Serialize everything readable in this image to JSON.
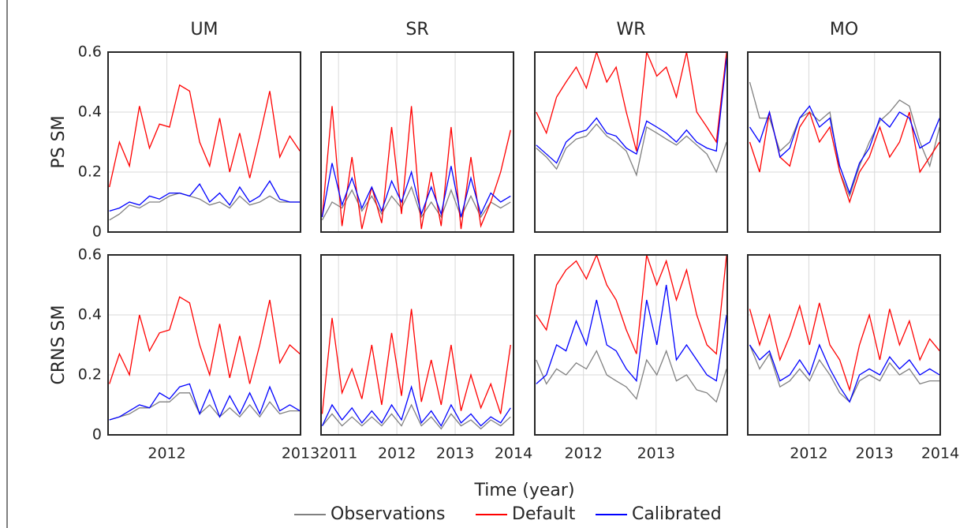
{
  "xlabel": "Time (year)",
  "legend": [
    {
      "name": "Observations",
      "color": "#808080"
    },
    {
      "name": "Default",
      "color": "#ff0000"
    },
    {
      "name": "Calibrated",
      "color": "#0000ff"
    }
  ],
  "chart_data": [
    {
      "type": "line",
      "title": "UM",
      "ylabel": "PS SM",
      "xlim": [
        2011.56,
        2013
      ],
      "xticks": [
        2012,
        2013
      ],
      "ylim": [
        0,
        0.6
      ],
      "yticks": [
        0,
        0.2,
        0.4,
        0.6
      ],
      "grid": true,
      "x": [
        2011.57,
        2011.645,
        2011.72,
        2011.795,
        2011.87,
        2011.945,
        2012.02,
        2012.095,
        2012.17,
        2012.245,
        2012.32,
        2012.395,
        2012.47,
        2012.545,
        2012.62,
        2012.695,
        2012.77,
        2012.845,
        2012.92,
        2012.995
      ],
      "series": [
        {
          "color": "#808080",
          "values": [
            0.04,
            0.06,
            0.09,
            0.08,
            0.1,
            0.1,
            0.12,
            0.13,
            0.12,
            0.11,
            0.09,
            0.1,
            0.08,
            0.12,
            0.09,
            0.1,
            0.12,
            0.1,
            0.1,
            0.1
          ]
        },
        {
          "color": "#ff0000",
          "values": [
            0.15,
            0.3,
            0.22,
            0.42,
            0.28,
            0.36,
            0.35,
            0.49,
            0.47,
            0.3,
            0.22,
            0.38,
            0.2,
            0.33,
            0.18,
            0.32,
            0.47,
            0.25,
            0.32,
            0.27
          ]
        },
        {
          "color": "#0000ff",
          "values": [
            0.07,
            0.08,
            0.1,
            0.09,
            0.12,
            0.11,
            0.13,
            0.13,
            0.12,
            0.16,
            0.1,
            0.13,
            0.09,
            0.15,
            0.1,
            0.12,
            0.17,
            0.11,
            0.1,
            0.1
          ]
        }
      ]
    },
    {
      "type": "line",
      "title": "SR",
      "xlim": [
        2010.7,
        2014
      ],
      "xticks": [
        2011,
        2012,
        2013,
        2014
      ],
      "ylim": [
        0,
        0.6
      ],
      "yticks": [
        0,
        0.2,
        0.4,
        0.6
      ],
      "grid": true,
      "x": [
        2010.72,
        2010.89,
        2011.06,
        2011.23,
        2011.4,
        2011.57,
        2011.74,
        2011.91,
        2012.08,
        2012.25,
        2012.42,
        2012.59,
        2012.76,
        2012.93,
        2013.1,
        2013.27,
        2013.44,
        2013.61,
        2013.78,
        2013.95
      ],
      "series": [
        {
          "color": "#808080",
          "values": [
            0.04,
            0.1,
            0.08,
            0.14,
            0.07,
            0.12,
            0.06,
            0.12,
            0.08,
            0.15,
            0.05,
            0.1,
            0.05,
            0.14,
            0.05,
            0.12,
            0.05,
            0.1,
            0.08,
            0.1
          ]
        },
        {
          "color": "#ff0000",
          "values": [
            0.05,
            0.42,
            0.02,
            0.25,
            0.01,
            0.15,
            0.03,
            0.35,
            0.06,
            0.42,
            0.01,
            0.2,
            0.02,
            0.35,
            0.01,
            0.25,
            0.02,
            0.1,
            0.2,
            0.34
          ]
        },
        {
          "color": "#0000ff",
          "values": [
            0.05,
            0.23,
            0.09,
            0.18,
            0.08,
            0.15,
            0.07,
            0.17,
            0.1,
            0.2,
            0.06,
            0.15,
            0.06,
            0.22,
            0.05,
            0.18,
            0.06,
            0.13,
            0.1,
            0.12
          ]
        }
      ]
    },
    {
      "type": "line",
      "title": "WR",
      "xlim": [
        2011.33,
        2013.98
      ],
      "xticks": [
        2012,
        2013
      ],
      "ylim": [
        0,
        0.6
      ],
      "yticks": [
        0,
        0.2,
        0.4,
        0.6
      ],
      "grid": true,
      "x": [
        2011.35,
        2011.49,
        2011.63,
        2011.76,
        2011.9,
        2012.04,
        2012.18,
        2012.32,
        2012.45,
        2012.59,
        2012.73,
        2012.87,
        2013.01,
        2013.14,
        2013.28,
        2013.42,
        2013.56,
        2013.7,
        2013.83,
        2013.97
      ],
      "series": [
        {
          "color": "#808080",
          "values": [
            0.28,
            0.25,
            0.21,
            0.28,
            0.31,
            0.32,
            0.36,
            0.32,
            0.3,
            0.27,
            0.19,
            0.35,
            0.33,
            0.31,
            0.29,
            0.32,
            0.29,
            0.26,
            0.2,
            0.3
          ]
        },
        {
          "color": "#ff0000",
          "values": [
            0.4,
            0.33,
            0.45,
            0.5,
            0.55,
            0.48,
            0.6,
            0.5,
            0.55,
            0.4,
            0.27,
            0.6,
            0.52,
            0.55,
            0.45,
            0.6,
            0.4,
            0.35,
            0.3,
            0.6
          ]
        },
        {
          "color": "#0000ff",
          "values": [
            0.29,
            0.26,
            0.23,
            0.3,
            0.33,
            0.34,
            0.38,
            0.33,
            0.32,
            0.28,
            0.26,
            0.37,
            0.35,
            0.33,
            0.3,
            0.34,
            0.3,
            0.28,
            0.27,
            0.58
          ]
        }
      ]
    },
    {
      "type": "line",
      "title": "MO",
      "xlim": [
        2011.07,
        2014
      ],
      "xticks": [
        2012,
        2013,
        2014
      ],
      "ylim": [
        0,
        0.6
      ],
      "yticks": [
        0,
        0.2,
        0.4,
        0.6
      ],
      "grid": true,
      "x": [
        2011.1,
        2011.25,
        2011.4,
        2011.56,
        2011.71,
        2011.86,
        2012.01,
        2012.16,
        2012.32,
        2012.47,
        2012.62,
        2012.77,
        2012.92,
        2013.08,
        2013.23,
        2013.38,
        2013.53,
        2013.69,
        2013.84,
        2013.99
      ],
      "series": [
        {
          "color": "#808080",
          "values": [
            0.5,
            0.38,
            0.38,
            0.27,
            0.3,
            0.38,
            0.4,
            0.37,
            0.4,
            0.2,
            0.12,
            0.22,
            0.3,
            0.37,
            0.4,
            0.44,
            0.42,
            0.3,
            0.22,
            0.35
          ]
        },
        {
          "color": "#ff0000",
          "values": [
            0.3,
            0.2,
            0.4,
            0.25,
            0.22,
            0.35,
            0.4,
            0.3,
            0.35,
            0.2,
            0.1,
            0.2,
            0.25,
            0.35,
            0.25,
            0.3,
            0.4,
            0.2,
            0.25,
            0.3
          ]
        },
        {
          "color": "#0000ff",
          "values": [
            0.35,
            0.3,
            0.4,
            0.25,
            0.28,
            0.38,
            0.42,
            0.35,
            0.38,
            0.22,
            0.13,
            0.23,
            0.28,
            0.38,
            0.35,
            0.4,
            0.38,
            0.28,
            0.3,
            0.38
          ]
        }
      ]
    },
    {
      "type": "line",
      "ylabel": "CRNS SM",
      "xlim": [
        2011.56,
        2013
      ],
      "xticks": [
        2012,
        2013
      ],
      "ylim": [
        0,
        0.6
      ],
      "yticks": [
        0,
        0.2,
        0.4,
        0.6
      ],
      "grid": true,
      "x": [
        2011.57,
        2011.645,
        2011.72,
        2011.795,
        2011.87,
        2011.945,
        2012.02,
        2012.095,
        2012.17,
        2012.245,
        2012.32,
        2012.395,
        2012.47,
        2012.545,
        2012.62,
        2012.695,
        2012.77,
        2012.845,
        2012.92,
        2012.995
      ],
      "series": [
        {
          "color": "#808080",
          "values": [
            0.05,
            0.06,
            0.07,
            0.09,
            0.09,
            0.11,
            0.11,
            0.14,
            0.14,
            0.07,
            0.1,
            0.06,
            0.09,
            0.06,
            0.1,
            0.06,
            0.11,
            0.07,
            0.08,
            0.08
          ]
        },
        {
          "color": "#ff0000",
          "values": [
            0.17,
            0.27,
            0.2,
            0.4,
            0.28,
            0.34,
            0.35,
            0.46,
            0.44,
            0.3,
            0.2,
            0.37,
            0.19,
            0.33,
            0.17,
            0.3,
            0.45,
            0.24,
            0.3,
            0.27
          ]
        },
        {
          "color": "#0000ff",
          "values": [
            0.05,
            0.06,
            0.08,
            0.1,
            0.09,
            0.14,
            0.12,
            0.16,
            0.17,
            0.07,
            0.15,
            0.06,
            0.13,
            0.07,
            0.14,
            0.07,
            0.16,
            0.08,
            0.1,
            0.08
          ]
        }
      ]
    },
    {
      "type": "line",
      "xlim": [
        2010.7,
        2014
      ],
      "xticks": [
        2011,
        2012,
        2013,
        2014
      ],
      "ylim": [
        0,
        0.6
      ],
      "yticks": [
        0,
        0.2,
        0.4,
        0.6
      ],
      "grid": true,
      "x": [
        2010.72,
        2010.89,
        2011.06,
        2011.23,
        2011.4,
        2011.57,
        2011.74,
        2011.91,
        2012.08,
        2012.25,
        2012.42,
        2012.59,
        2012.76,
        2012.93,
        2013.1,
        2013.27,
        2013.44,
        2013.61,
        2013.78,
        2013.95
      ],
      "series": [
        {
          "color": "#808080",
          "values": [
            0.03,
            0.07,
            0.03,
            0.06,
            0.03,
            0.06,
            0.03,
            0.07,
            0.03,
            0.1,
            0.03,
            0.06,
            0.02,
            0.07,
            0.03,
            0.05,
            0.02,
            0.05,
            0.03,
            0.06
          ]
        },
        {
          "color": "#ff0000",
          "values": [
            0.07,
            0.39,
            0.14,
            0.22,
            0.12,
            0.3,
            0.1,
            0.34,
            0.13,
            0.42,
            0.11,
            0.25,
            0.1,
            0.3,
            0.08,
            0.2,
            0.09,
            0.17,
            0.07,
            0.3
          ]
        },
        {
          "color": "#0000ff",
          "values": [
            0.03,
            0.1,
            0.05,
            0.09,
            0.04,
            0.08,
            0.04,
            0.1,
            0.05,
            0.16,
            0.04,
            0.08,
            0.03,
            0.1,
            0.04,
            0.07,
            0.03,
            0.06,
            0.04,
            0.09
          ]
        }
      ]
    },
    {
      "type": "line",
      "xlim": [
        2011.33,
        2013.98
      ],
      "xticks": [
        2012,
        2013
      ],
      "ylim": [
        0,
        0.6
      ],
      "yticks": [
        0,
        0.2,
        0.4,
        0.6
      ],
      "grid": true,
      "x": [
        2011.35,
        2011.49,
        2011.63,
        2011.76,
        2011.9,
        2012.04,
        2012.18,
        2012.32,
        2012.45,
        2012.59,
        2012.73,
        2012.87,
        2013.01,
        2013.14,
        2013.28,
        2013.42,
        2013.56,
        2013.7,
        2013.83,
        2013.97
      ],
      "series": [
        {
          "color": "#808080",
          "values": [
            0.25,
            0.17,
            0.22,
            0.2,
            0.24,
            0.22,
            0.28,
            0.2,
            0.18,
            0.16,
            0.12,
            0.25,
            0.2,
            0.28,
            0.18,
            0.2,
            0.15,
            0.14,
            0.11,
            0.22
          ]
        },
        {
          "color": "#ff0000",
          "values": [
            0.4,
            0.35,
            0.5,
            0.55,
            0.58,
            0.52,
            0.6,
            0.5,
            0.45,
            0.35,
            0.27,
            0.6,
            0.5,
            0.58,
            0.45,
            0.55,
            0.4,
            0.3,
            0.27,
            0.6
          ]
        },
        {
          "color": "#0000ff",
          "values": [
            0.17,
            0.2,
            0.3,
            0.28,
            0.38,
            0.3,
            0.45,
            0.3,
            0.28,
            0.22,
            0.18,
            0.45,
            0.3,
            0.5,
            0.25,
            0.3,
            0.25,
            0.2,
            0.18,
            0.4
          ]
        }
      ]
    },
    {
      "type": "line",
      "xlim": [
        2011.07,
        2014
      ],
      "xticks": [
        2012,
        2013,
        2014
      ],
      "ylim": [
        0,
        0.6
      ],
      "yticks": [
        0,
        0.2,
        0.4,
        0.6
      ],
      "grid": true,
      "x": [
        2011.1,
        2011.25,
        2011.4,
        2011.56,
        2011.71,
        2011.86,
        2012.01,
        2012.16,
        2012.32,
        2012.47,
        2012.62,
        2012.77,
        2012.92,
        2013.08,
        2013.23,
        2013.38,
        2013.53,
        2013.69,
        2013.84,
        2013.99
      ],
      "series": [
        {
          "color": "#808080",
          "values": [
            0.3,
            0.22,
            0.27,
            0.16,
            0.18,
            0.22,
            0.18,
            0.25,
            0.2,
            0.14,
            0.11,
            0.18,
            0.2,
            0.18,
            0.24,
            0.2,
            0.22,
            0.17,
            0.18,
            0.18
          ]
        },
        {
          "color": "#ff0000",
          "values": [
            0.42,
            0.3,
            0.4,
            0.25,
            0.33,
            0.43,
            0.3,
            0.44,
            0.3,
            0.25,
            0.15,
            0.3,
            0.4,
            0.25,
            0.42,
            0.3,
            0.38,
            0.25,
            0.32,
            0.28
          ]
        },
        {
          "color": "#0000ff",
          "values": [
            0.3,
            0.25,
            0.28,
            0.18,
            0.2,
            0.25,
            0.2,
            0.3,
            0.22,
            0.16,
            0.11,
            0.2,
            0.22,
            0.2,
            0.26,
            0.22,
            0.25,
            0.2,
            0.22,
            0.2
          ]
        }
      ]
    }
  ]
}
